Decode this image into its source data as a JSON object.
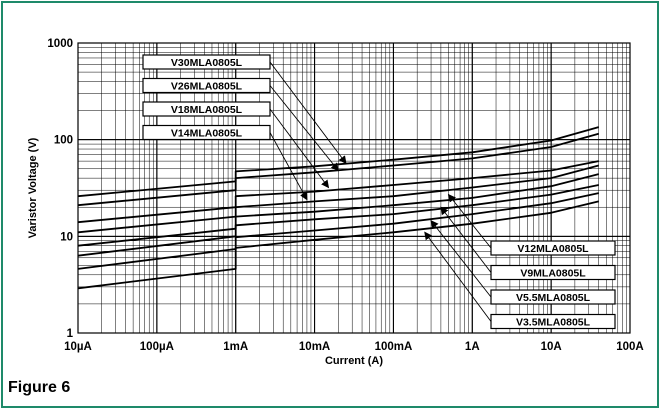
{
  "figure": {
    "caption": "Figure 6"
  },
  "colors": {
    "frame": "#1e8a6a",
    "curve": "#000000",
    "grid": "#000000"
  },
  "chart_data": {
    "type": "line",
    "title": "",
    "xlabel": "Current (A)",
    "ylabel": "Varistor Voltage (V)",
    "x_scale": "log",
    "y_scale": "log",
    "xlim": [
      1e-05,
      100
    ],
    "ylim": [
      1,
      1000
    ],
    "x_ticks": [
      {
        "value": 1e-05,
        "label": "10µA"
      },
      {
        "value": 0.0001,
        "label": "100µA"
      },
      {
        "value": 0.001,
        "label": "1mA"
      },
      {
        "value": 0.01,
        "label": "10mA"
      },
      {
        "value": 0.1,
        "label": "100mA"
      },
      {
        "value": 1,
        "label": "1A"
      },
      {
        "value": 10,
        "label": "10A"
      },
      {
        "value": 100,
        "label": "100A"
      }
    ],
    "y_ticks": [
      {
        "value": 1,
        "label": "1"
      },
      {
        "value": 10,
        "label": "10"
      },
      {
        "value": 100,
        "label": "100"
      },
      {
        "value": 1000,
        "label": "1000"
      }
    ],
    "grid": true,
    "series": [
      {
        "name": "V30MLA0805L",
        "points": [
          [
            1e-05,
            26
          ],
          [
            0.001,
            37
          ],
          [
            0.001,
            47
          ],
          [
            0.01,
            53
          ],
          [
            0.1,
            62
          ],
          [
            1,
            74
          ],
          [
            10,
            98
          ],
          [
            40,
            135
          ]
        ]
      },
      {
        "name": "V26MLA0805L",
        "points": [
          [
            1e-05,
            21
          ],
          [
            0.001,
            30
          ],
          [
            0.001,
            40
          ],
          [
            0.01,
            46
          ],
          [
            0.1,
            54
          ],
          [
            1,
            64
          ],
          [
            10,
            84
          ],
          [
            40,
            115
          ]
        ]
      },
      {
        "name": "V18MLA0805L",
        "points": [
          [
            1e-05,
            14
          ],
          [
            0.001,
            20
          ],
          [
            0.001,
            26
          ],
          [
            0.01,
            29
          ],
          [
            0.1,
            34
          ],
          [
            1,
            40
          ],
          [
            10,
            48
          ],
          [
            40,
            60
          ]
        ]
      },
      {
        "name": "V14MLA0805L",
        "points": [
          [
            1e-05,
            11
          ],
          [
            0.001,
            16
          ],
          [
            0.001,
            20
          ],
          [
            0.01,
            23
          ],
          [
            0.1,
            26
          ],
          [
            1,
            32
          ],
          [
            10,
            40
          ],
          [
            40,
            54
          ]
        ]
      },
      {
        "name": "V12MLA0805L",
        "points": [
          [
            1e-05,
            8
          ],
          [
            0.001,
            12
          ],
          [
            0.001,
            16
          ],
          [
            0.01,
            18
          ],
          [
            0.1,
            21
          ],
          [
            1,
            25
          ],
          [
            10,
            33
          ],
          [
            40,
            44
          ]
        ]
      },
      {
        "name": "V9MLA0805L",
        "points": [
          [
            1e-05,
            6.3
          ],
          [
            0.001,
            10
          ],
          [
            0.001,
            13
          ],
          [
            0.01,
            15
          ],
          [
            0.1,
            17
          ],
          [
            1,
            21
          ],
          [
            10,
            27
          ],
          [
            40,
            34
          ]
        ]
      },
      {
        "name": "V5.5MLA0805L",
        "points": [
          [
            1e-05,
            4.6
          ],
          [
            0.001,
            7.4
          ],
          [
            0.001,
            9.8
          ],
          [
            0.01,
            11.5
          ],
          [
            0.1,
            13.5
          ],
          [
            1,
            17
          ],
          [
            10,
            22
          ],
          [
            40,
            28
          ]
        ]
      },
      {
        "name": "V3.5MLA0805L",
        "points": [
          [
            1e-05,
            2.9
          ],
          [
            0.001,
            4.6
          ],
          [
            0.001,
            7.6
          ],
          [
            0.01,
            9.2
          ],
          [
            0.1,
            11
          ],
          [
            1,
            13.5
          ],
          [
            10,
            17.5
          ],
          [
            40,
            23
          ]
        ]
      }
    ],
    "callouts_left": [
      {
        "label": "V30MLA0805L",
        "target": [
          0.025,
          57
        ]
      },
      {
        "label": "V26MLA0805L",
        "target": [
          0.02,
          48
        ]
      },
      {
        "label": "V18MLA0805L",
        "target": [
          0.015,
          32
        ]
      },
      {
        "label": "V14MLA0805L",
        "target": [
          0.008,
          24
        ]
      }
    ],
    "callouts_right": [
      {
        "label": "V12MLA0805L",
        "target": [
          0.5,
          27
        ]
      },
      {
        "label": "V9MLA0805L",
        "target": [
          0.4,
          20
        ]
      },
      {
        "label": "V5.5MLA0805L",
        "target": [
          0.3,
          14.5
        ]
      },
      {
        "label": "V3.5MLA0805L",
        "target": [
          0.25,
          11
        ]
      }
    ]
  }
}
